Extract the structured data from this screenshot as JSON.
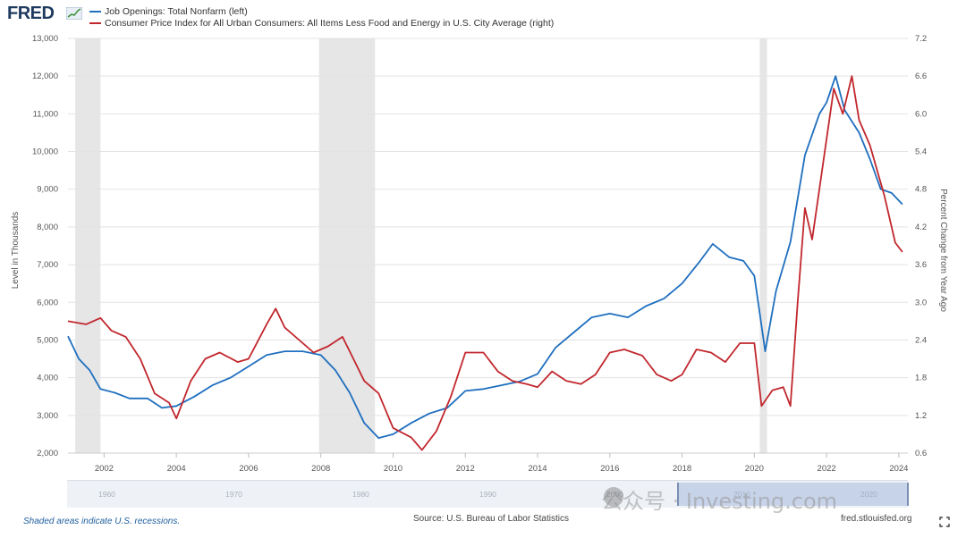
{
  "logo": {
    "text": "FRED"
  },
  "chart_data": {
    "type": "line",
    "title": "",
    "x_ticks": [
      "2002",
      "2004",
      "2006",
      "2008",
      "2010",
      "2012",
      "2014",
      "2016",
      "2018",
      "2020",
      "2022",
      "2024"
    ],
    "xlim": [
      2001.0,
      2024.25
    ],
    "left_axis": {
      "label": "Level in Thousands",
      "ticks": [
        "13,000",
        "12,000",
        "11,000",
        "10,000",
        "9,000",
        "8,000",
        "7,000",
        "6,000",
        "5,000",
        "4,000",
        "3,000",
        "2,000"
      ],
      "ylim": [
        2000,
        13000
      ]
    },
    "right_axis": {
      "label": "Percent Change from Year Ago",
      "ticks": [
        "7.2",
        "6.6",
        "6.0",
        "5.4",
        "4.8",
        "4.2",
        "3.6",
        "3.0",
        "2.4",
        "1.8",
        "1.2",
        "0.6"
      ],
      "ylim": [
        0.6,
        7.2
      ]
    },
    "recessions": [
      [
        2001.2,
        2001.9
      ],
      [
        2007.95,
        2009.5
      ],
      [
        2020.15,
        2020.35
      ]
    ],
    "series": [
      {
        "name": "Job Openings: Total Nonfarm (left)",
        "color": "#1f6fbf",
        "axis": "left",
        "points": [
          [
            2001.0,
            5100
          ],
          [
            2001.3,
            4500
          ],
          [
            2001.6,
            4200
          ],
          [
            2001.9,
            3700
          ],
          [
            2002.3,
            3600
          ],
          [
            2002.7,
            3450
          ],
          [
            2003.2,
            3450
          ],
          [
            2003.6,
            3200
          ],
          [
            2004.0,
            3250
          ],
          [
            2004.5,
            3500
          ],
          [
            2005.0,
            3800
          ],
          [
            2005.5,
            4000
          ],
          [
            2006.0,
            4300
          ],
          [
            2006.5,
            4600
          ],
          [
            2007.0,
            4700
          ],
          [
            2007.5,
            4700
          ],
          [
            2008.0,
            4600
          ],
          [
            2008.4,
            4200
          ],
          [
            2008.8,
            3600
          ],
          [
            2009.2,
            2800
          ],
          [
            2009.6,
            2400
          ],
          [
            2010.0,
            2500
          ],
          [
            2010.5,
            2800
          ],
          [
            2011.0,
            3050
          ],
          [
            2011.5,
            3200
          ],
          [
            2012.0,
            3650
          ],
          [
            2012.5,
            3700
          ],
          [
            2013.0,
            3800
          ],
          [
            2013.5,
            3900
          ],
          [
            2014.0,
            4100
          ],
          [
            2014.5,
            4800
          ],
          [
            2015.0,
            5200
          ],
          [
            2015.5,
            5600
          ],
          [
            2016.0,
            5700
          ],
          [
            2016.5,
            5600
          ],
          [
            2017.0,
            5900
          ],
          [
            2017.5,
            6100
          ],
          [
            2018.0,
            6500
          ],
          [
            2018.5,
            7100
          ],
          [
            2018.85,
            7550
          ],
          [
            2019.3,
            7200
          ],
          [
            2019.7,
            7100
          ],
          [
            2020.0,
            6700
          ],
          [
            2020.3,
            4700
          ],
          [
            2020.6,
            6300
          ],
          [
            2021.0,
            7600
          ],
          [
            2021.4,
            9900
          ],
          [
            2021.8,
            11000
          ],
          [
            2022.0,
            11300
          ],
          [
            2022.25,
            12000
          ],
          [
            2022.5,
            11100
          ],
          [
            2022.9,
            10500
          ],
          [
            2023.2,
            9800
          ],
          [
            2023.5,
            9000
          ],
          [
            2023.8,
            8900
          ],
          [
            2024.1,
            8600
          ]
        ]
      },
      {
        "name": "Consumer Price Index for All Urban Consumers: All Items Less Food and Energy in U.S. City Average (right)",
        "color": "#c1272d",
        "axis": "right",
        "points": [
          [
            2001.0,
            2.7
          ],
          [
            2001.5,
            2.65
          ],
          [
            2001.9,
            2.75
          ],
          [
            2002.2,
            2.55
          ],
          [
            2002.6,
            2.45
          ],
          [
            2003.0,
            2.1
          ],
          [
            2003.4,
            1.55
          ],
          [
            2003.8,
            1.4
          ],
          [
            2004.0,
            1.15
          ],
          [
            2004.4,
            1.75
          ],
          [
            2004.8,
            2.1
          ],
          [
            2005.2,
            2.2
          ],
          [
            2005.7,
            2.05
          ],
          [
            2006.0,
            2.1
          ],
          [
            2006.5,
            2.65
          ],
          [
            2006.75,
            2.9
          ],
          [
            2007.0,
            2.6
          ],
          [
            2007.4,
            2.4
          ],
          [
            2007.8,
            2.2
          ],
          [
            2008.2,
            2.3
          ],
          [
            2008.6,
            2.45
          ],
          [
            2008.9,
            2.1
          ],
          [
            2009.2,
            1.75
          ],
          [
            2009.6,
            1.55
          ],
          [
            2010.0,
            1.0
          ],
          [
            2010.5,
            0.85
          ],
          [
            2010.8,
            0.65
          ],
          [
            2011.2,
            0.95
          ],
          [
            2011.6,
            1.5
          ],
          [
            2012.0,
            2.2
          ],
          [
            2012.5,
            2.2
          ],
          [
            2012.9,
            1.9
          ],
          [
            2013.3,
            1.75
          ],
          [
            2013.7,
            1.7
          ],
          [
            2014.0,
            1.65
          ],
          [
            2014.4,
            1.9
          ],
          [
            2014.8,
            1.75
          ],
          [
            2015.2,
            1.7
          ],
          [
            2015.6,
            1.85
          ],
          [
            2016.0,
            2.2
          ],
          [
            2016.4,
            2.25
          ],
          [
            2016.9,
            2.15
          ],
          [
            2017.3,
            1.85
          ],
          [
            2017.7,
            1.75
          ],
          [
            2018.0,
            1.85
          ],
          [
            2018.4,
            2.25
          ],
          [
            2018.8,
            2.2
          ],
          [
            2019.2,
            2.05
          ],
          [
            2019.6,
            2.35
          ],
          [
            2020.0,
            2.35
          ],
          [
            2020.2,
            1.35
          ],
          [
            2020.5,
            1.6
          ],
          [
            2020.8,
            1.65
          ],
          [
            2021.0,
            1.35
          ],
          [
            2021.2,
            3.0
          ],
          [
            2021.4,
            4.5
          ],
          [
            2021.6,
            4.0
          ],
          [
            2021.9,
            5.2
          ],
          [
            2022.2,
            6.4
          ],
          [
            2022.45,
            6.0
          ],
          [
            2022.7,
            6.6
          ],
          [
            2022.9,
            5.9
          ],
          [
            2023.2,
            5.5
          ],
          [
            2023.6,
            4.7
          ],
          [
            2023.9,
            3.95
          ],
          [
            2024.1,
            3.8
          ]
        ]
      }
    ],
    "navigator_years": [
      "1960",
      "1970",
      "1980",
      "1990",
      "2000",
      "2010",
      "2020"
    ]
  },
  "footer": {
    "recession_note": "Shaded areas indicate U.S. recessions.",
    "source": "Source: U.S. Bureau of Labor Statistics",
    "site": "fred.stlouisfed.org"
  },
  "watermark": {
    "text": "公众号 · Investing.com"
  }
}
